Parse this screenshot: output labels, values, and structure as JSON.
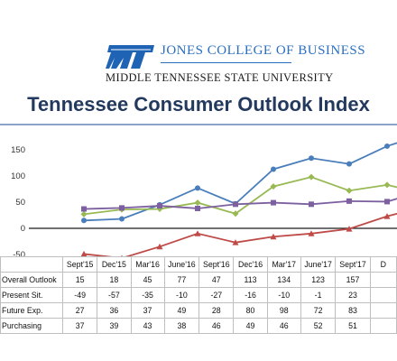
{
  "header": {
    "college": "JONES COLLEGE OF BUSINESS",
    "university": "MIDDLE TENNESSEE STATE UNIVERSITY",
    "logo_text": "MT"
  },
  "colors": {
    "title": "#233a5e",
    "logo": "#1f63b5",
    "overall": "#4a7ebb",
    "present": "#be4b48",
    "future": "#98b954",
    "purchasing": "#7d60a0"
  },
  "chart_data": {
    "type": "line",
    "title": "Tennessee Consumer Outlook Index",
    "categories": [
      "Sept'15",
      "Dec'15",
      "Mar'16",
      "June'16",
      "Sept'16",
      "Dec'16",
      "Mar'17",
      "June'17",
      "Sept'17",
      "Dec'17"
    ],
    "series": [
      {
        "name": "Overall Outlook",
        "values": [
          15,
          18,
          45,
          77,
          47,
          113,
          134,
          123,
          157,
          180
        ]
      },
      {
        "name": "Present Sit.",
        "values": [
          -49,
          -57,
          -35,
          -10,
          -27,
          -16,
          -10,
          -1,
          23,
          42
        ]
      },
      {
        "name": "Future Exp.",
        "values": [
          27,
          36,
          37,
          49,
          28,
          80,
          98,
          72,
          83,
          66
        ]
      },
      {
        "name": "Purchasing",
        "values": [
          37,
          39,
          43,
          38,
          46,
          49,
          46,
          52,
          51,
          72
        ]
      }
    ],
    "table_columns": [
      "Sept'15",
      "Dec'15",
      "Mar'16",
      "June'16",
      "Sept'16",
      "Dec'16",
      "Mar'17",
      "June'17",
      "Sept'17",
      "D"
    ],
    "table_rows": [
      {
        "label": "Overall Outlook",
        "values": [
          "15",
          "18",
          "45",
          "77",
          "47",
          "113",
          "134",
          "123",
          "157",
          ""
        ]
      },
      {
        "label": "Present Sit.",
        "values": [
          "-49",
          "-57",
          "-35",
          "-10",
          "-27",
          "-16",
          "-10",
          "-1",
          "23",
          ""
        ]
      },
      {
        "label": "Future Exp.",
        "values": [
          "27",
          "36",
          "37",
          "49",
          "28",
          "80",
          "98",
          "72",
          "83",
          ""
        ]
      },
      {
        "label": "Purchasing",
        "values": [
          "37",
          "39",
          "43",
          "38",
          "46",
          "49",
          "46",
          "52",
          "51",
          ""
        ]
      }
    ],
    "ylim": [
      -100,
      190
    ],
    "yticks": [
      "150",
      "100",
      "50",
      "0",
      "-50",
      "-100"
    ],
    "grid": false
  }
}
